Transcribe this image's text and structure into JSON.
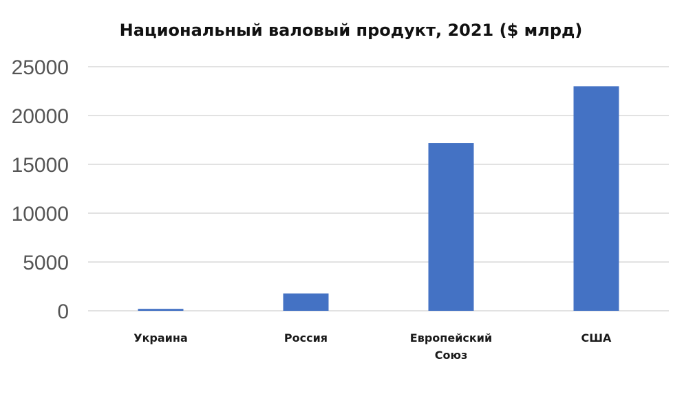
{
  "chart_data": {
    "type": "bar",
    "title": "Национальный валовый продукт, 2021 ($ млрд)",
    "xlabel": "",
    "ylabel": "",
    "categories": [
      "Украина",
      "Россия",
      "Европейский Союз",
      "США"
    ],
    "category_lines": [
      [
        "Украина"
      ],
      [
        "Россия"
      ],
      [
        "Европейский",
        "Союз"
      ],
      [
        "США"
      ]
    ],
    "values": [
      200,
      1780,
      17180,
      23000
    ],
    "ylim": [
      0,
      25000
    ],
    "yticks": [
      "0",
      "5000",
      "10000",
      "15000",
      "20000",
      "25000"
    ],
    "grid": true,
    "legend": "none",
    "colors": {
      "bar": "#4472c4",
      "gridline": "#d9d9d9",
      "tick_text": "#555555"
    }
  }
}
